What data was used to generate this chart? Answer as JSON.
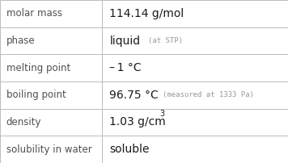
{
  "rows": [
    {
      "label": "molar mass",
      "value": "114.14 g/mol",
      "annotation": "",
      "superscript": ""
    },
    {
      "label": "phase",
      "value": "liquid",
      "annotation": "(at STP)",
      "superscript": ""
    },
    {
      "label": "melting point",
      "value": "– 1 °C",
      "annotation": "",
      "superscript": ""
    },
    {
      "label": "boiling point",
      "value": "96.75 °C",
      "annotation": "(measured at 1333 Pa)",
      "superscript": ""
    },
    {
      "label": "density",
      "value": "1.03 g/cm",
      "annotation": "",
      "superscript": "3"
    },
    {
      "label": "solubility in water",
      "value": "soluble",
      "annotation": "",
      "superscript": ""
    }
  ],
  "col_split": 0.355,
  "bg_color": "#ffffff",
  "border_color": "#bbbbbb",
  "label_color": "#505050",
  "value_color": "#1a1a1a",
  "annotation_color": "#999999",
  "label_fontsize": 8.5,
  "value_fontsize": 10.0,
  "annotation_fontsize": 6.5,
  "superscript_fontsize": 7.0
}
